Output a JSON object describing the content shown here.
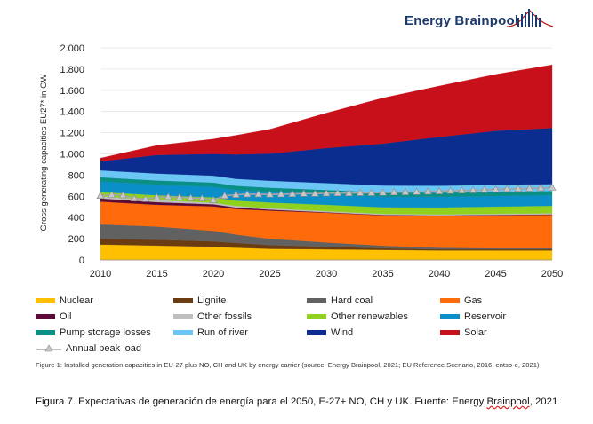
{
  "brand": {
    "name": "Energy Brainpool",
    "logo_icon": "city-skyline-icon",
    "color": "#1b3a6b"
  },
  "chart_data": {
    "type": "area",
    "stacked": true,
    "ylabel": "Gross generating capacities EU27* in GW",
    "xlabel": "",
    "ylim": [
      0,
      2000
    ],
    "yticks": [
      0,
      200,
      400,
      600,
      800,
      1000,
      1200,
      1400,
      1600,
      1800,
      2000
    ],
    "ytick_labels": [
      "0",
      "200",
      "400",
      "600",
      "800",
      "1.000",
      "1.200",
      "1.400",
      "1.600",
      "1.800",
      "2.000"
    ],
    "xlim": [
      2010,
      2050
    ],
    "xticks": [
      2010,
      2015,
      2020,
      2025,
      2030,
      2035,
      2040,
      2045,
      2050
    ],
    "x": [
      2010,
      2015,
      2020,
      2022,
      2025,
      2030,
      2035,
      2040,
      2045,
      2050
    ],
    "series": [
      {
        "name": "Nuclear",
        "color": "#ffc000",
        "values": [
          145,
          135,
          125,
          115,
          105,
          100,
          95,
          90,
          90,
          90
        ]
      },
      {
        "name": "Lignite",
        "color": "#6b3c12",
        "values": [
          55,
          55,
          50,
          45,
          35,
          25,
          15,
          10,
          10,
          10
        ]
      },
      {
        "name": "Hard coal",
        "color": "#616161",
        "values": [
          135,
          125,
          100,
          80,
          60,
          40,
          25,
          15,
          10,
          10
        ]
      },
      {
        "name": "Gas",
        "color": "#ff6a0a",
        "values": [
          215,
          205,
          230,
          240,
          265,
          280,
          285,
          300,
          310,
          315
        ]
      },
      {
        "name": "Oil",
        "color": "#5c0a38",
        "values": [
          30,
          25,
          20,
          15,
          10,
          5,
          5,
          5,
          5,
          5
        ]
      },
      {
        "name": "Other fossils",
        "color": "#bfbfbf",
        "values": [
          20,
          20,
          15,
          15,
          12,
          10,
          10,
          10,
          10,
          10
        ]
      },
      {
        "name": "Other renewables",
        "color": "#8fd11c",
        "values": [
          40,
          45,
          50,
          50,
          55,
          60,
          62,
          65,
          68,
          70
        ]
      },
      {
        "name": "Reservoir",
        "color": "#0b8fc8",
        "values": [
          100,
          100,
          100,
          100,
          100,
          100,
          100,
          100,
          100,
          100
        ]
      },
      {
        "name": "Pump storage losses",
        "color": "#0a8f87",
        "values": [
          40,
          40,
          40,
          40,
          40,
          40,
          40,
          40,
          40,
          40
        ]
      },
      {
        "name": "Run of river",
        "color": "#6cc6f5",
        "values": [
          65,
          65,
          65,
          65,
          65,
          65,
          65,
          65,
          65,
          65
        ]
      },
      {
        "name": "Wind",
        "color": "#0a2d8f",
        "values": [
          85,
          175,
          205,
          230,
          255,
          330,
          395,
          460,
          510,
          530
        ]
      },
      {
        "name": "Solar",
        "color": "#c8101a",
        "values": [
          30,
          90,
          140,
          180,
          230,
          330,
          430,
          480,
          532,
          595
        ]
      }
    ],
    "line_series": {
      "name": "Annual peak load",
      "color": "#a6a6a6",
      "marker": "triangle",
      "x": [
        2010,
        2011,
        2012,
        2013,
        2014,
        2015,
        2016,
        2017,
        2018,
        2019,
        2020,
        2021,
        2022,
        2023,
        2024,
        2025,
        2026,
        2027,
        2028,
        2029,
        2030,
        2031,
        2032,
        2033,
        2034,
        2035,
        2036,
        2037,
        2038,
        2039,
        2040,
        2041,
        2042,
        2043,
        2044,
        2045,
        2046,
        2047,
        2048,
        2049,
        2050
      ],
      "values": [
        605,
        615,
        610,
        580,
        575,
        590,
        595,
        590,
        585,
        580,
        565,
        605,
        615,
        620,
        620,
        618,
        620,
        622,
        625,
        625,
        628,
        630,
        630,
        632,
        632,
        635,
        638,
        640,
        642,
        645,
        648,
        652,
        655,
        658,
        662,
        665,
        670,
        672,
        675,
        678,
        682
      ]
    }
  },
  "legend": {
    "items": [
      {
        "label": "Nuclear",
        "color": "#ffc000"
      },
      {
        "label": "Lignite",
        "color": "#6b3c12"
      },
      {
        "label": "Hard coal",
        "color": "#616161"
      },
      {
        "label": "Gas",
        "color": "#ff6a0a"
      },
      {
        "label": "Oil",
        "color": "#5c0a38"
      },
      {
        "label": "Other fossils",
        "color": "#bfbfbf"
      },
      {
        "label": "Other renewables",
        "color": "#8fd11c"
      },
      {
        "label": "Reservoir",
        "color": "#0b8fc8"
      },
      {
        "label": "Pump storage losses",
        "color": "#0a8f87"
      },
      {
        "label": "Run of river",
        "color": "#6cc6f5"
      },
      {
        "label": "Wind",
        "color": "#0a2d8f"
      },
      {
        "label": "Solar",
        "color": "#c8101a"
      }
    ],
    "line_label": "Annual peak load"
  },
  "caption": "Figure 1: Installed generation capacities in EU-27 plus NO, CH and UK by energy carrier (source: Energy Brainpool, 2021; EU Reference Scenario, 2016; entso-e, 2021)",
  "figure_text": {
    "main": "Figura 7. Expectativas de generación de energía para el 2050, E-27+ NO, CH y UK. Fuente: Energy ",
    "underlined": "Brainpool",
    "tail": ", 2021"
  }
}
